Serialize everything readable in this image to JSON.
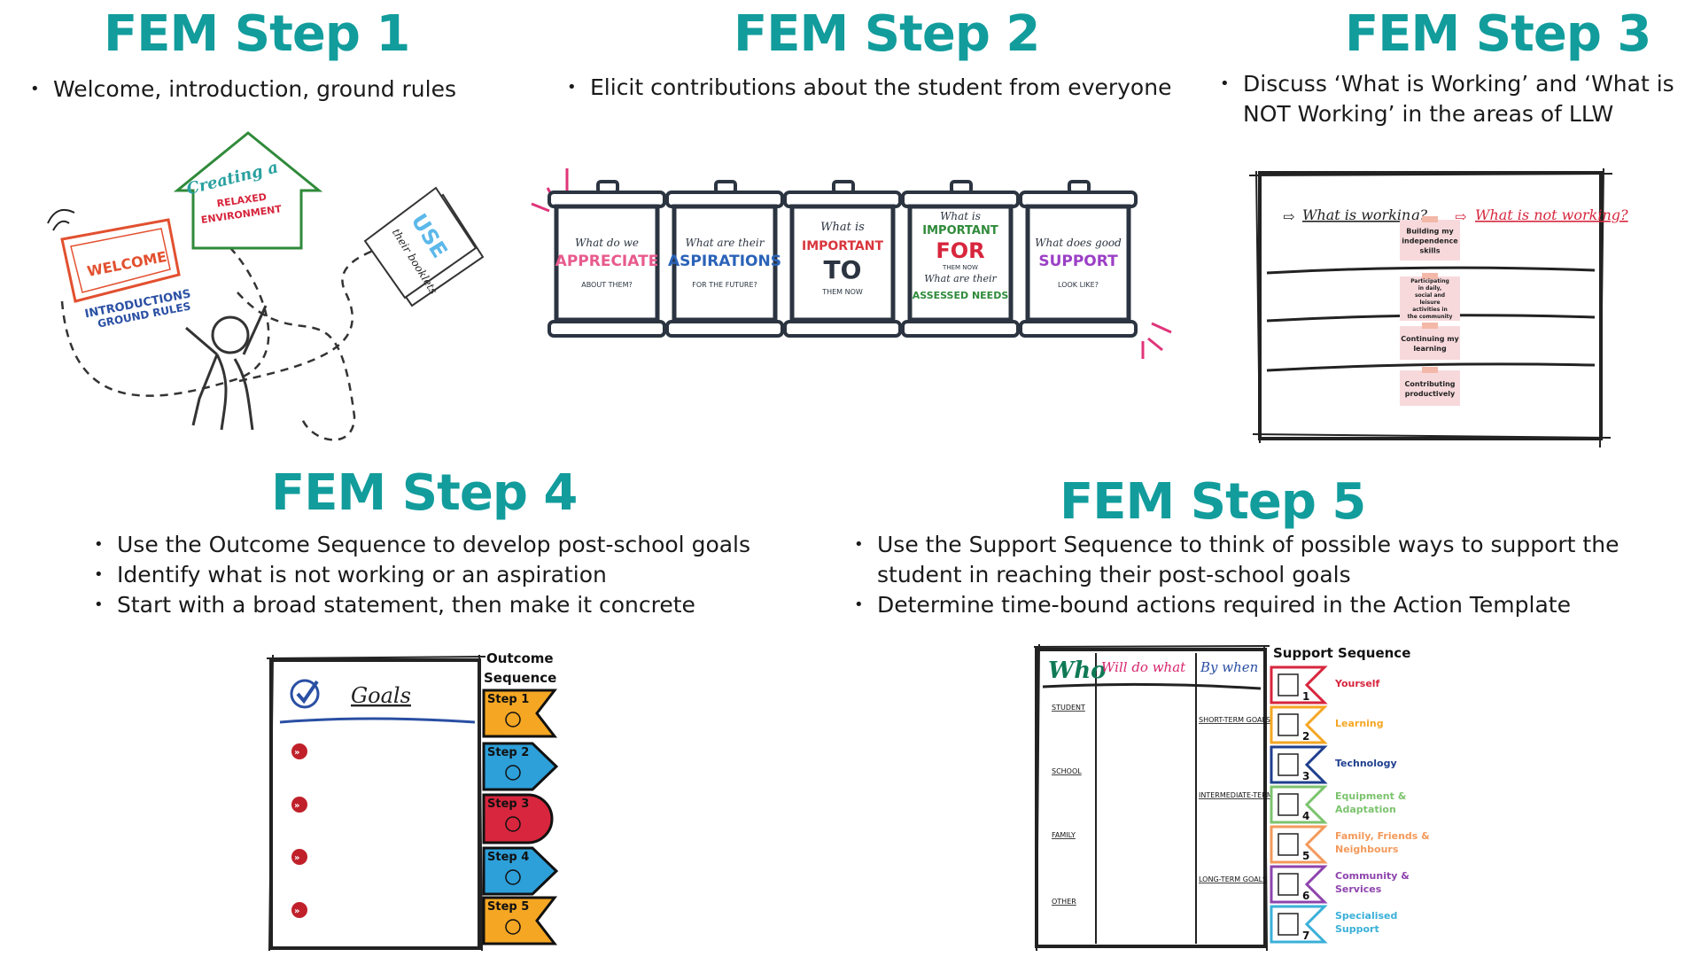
{
  "steps": [
    {
      "title": "FEM Step 1",
      "bullets": [
        "Welcome, introduction, ground rules"
      ]
    },
    {
      "title": "FEM Step 2",
      "bullets": [
        "Elicit contributions about the student from everyone"
      ]
    },
    {
      "title": "FEM Step 3",
      "bullets": [
        "Discuss ‘What is Working’ and ‘What is NOT Working’ in the areas of LLW"
      ]
    },
    {
      "title": "FEM Step 4",
      "bullets": [
        "Use the Outcome Sequence to develop post-school goals",
        "Identify what is not working or an aspiration",
        "Start with a broad statement, then make it concrete"
      ]
    },
    {
      "title": "FEM Step 5",
      "bullets": [
        "Use the Support Sequence to think of possible ways to support the student in reaching their post-school goals",
        "Determine time-bound actions required in the Action Template"
      ]
    }
  ],
  "step1_illustration": {
    "welcome_sign": "WELCOME",
    "introductions": "INTRODUCTIONS",
    "ground_rules": "GROUND RULES",
    "house_line1": "Creating a",
    "house_line2": "RELAXED",
    "house_line3": "ENVIRONMENT",
    "booklet_use": "USE",
    "booklet_sub": "their booklets"
  },
  "step2_jars": [
    {
      "l1": "What do we",
      "l2": "APPRECIATE",
      "l3": "ABOUT THEM?",
      "color": "#e85a8c"
    },
    {
      "l1": "What are their",
      "l2": "ASPIRATIONS",
      "l3": "FOR THE FUTURE?",
      "color": "#2a63b8"
    },
    {
      "l1": "What is",
      "l2": "IMPORTANT",
      "l2b": "TO",
      "l3": "THEM NOW",
      "color": "#d9363e"
    },
    {
      "l1": "What is",
      "l2": "IMPORTANT",
      "l2b": "FOR",
      "l3": "THEM NOW",
      "l4": "What are their",
      "l5": "ASSESSED NEEDS",
      "color": "#2f8a3a"
    },
    {
      "l1": "What does good",
      "l2": "SUPPORT",
      "l3": "LOOK LIKE?",
      "color": "#9b3fc6"
    }
  ],
  "step3_board": {
    "working": "What is working?",
    "not_working": "What is not working?",
    "areas": [
      "Building my independence skills",
      "Participating in daily, social and leisure activities in the community",
      "Continuing my learning",
      "Contributing productively"
    ]
  },
  "step4_board": {
    "goals": "Goals",
    "sequence_title_1": "Outcome",
    "sequence_title_2": "Sequence",
    "steps": [
      {
        "label": "Step 1",
        "color": "#f5a623"
      },
      {
        "label": "Step 2",
        "color": "#2d9fd9"
      },
      {
        "label": "Step 3",
        "color": "#d7263d"
      },
      {
        "label": "Step 4",
        "color": "#2d9fd9"
      },
      {
        "label": "Step 5",
        "color": "#f5a623"
      }
    ]
  },
  "step5_template": {
    "who": "Who",
    "will_do_what": "Will do what",
    "by_when": "By when",
    "rows": [
      "STUDENT",
      "SCHOOL",
      "FAMILY",
      "OTHER"
    ],
    "goals": [
      "SHORT-TERM GOALS",
      "INTERMEDIATE-TERM GOALS",
      "LONG-TERM GOALS"
    ],
    "sequence_title": "Support Sequence",
    "sequence": [
      {
        "num": "1",
        "label": "Yourself",
        "color": "#d7263d"
      },
      {
        "num": "2",
        "label": "Learning",
        "color": "#f5a623"
      },
      {
        "num": "3",
        "label": "Technology",
        "color": "#1f3f8f"
      },
      {
        "num": "4",
        "label": "Equipment & Adaptation",
        "color": "#7cc36e"
      },
      {
        "num": "5",
        "label": "Family, Friends & Neighbours",
        "color": "#f39a5b"
      },
      {
        "num": "6",
        "label": "Community & Services",
        "color": "#8e44ad"
      },
      {
        "num": "7",
        "label": "Specialised Support",
        "color": "#3ab0d8"
      }
    ]
  }
}
